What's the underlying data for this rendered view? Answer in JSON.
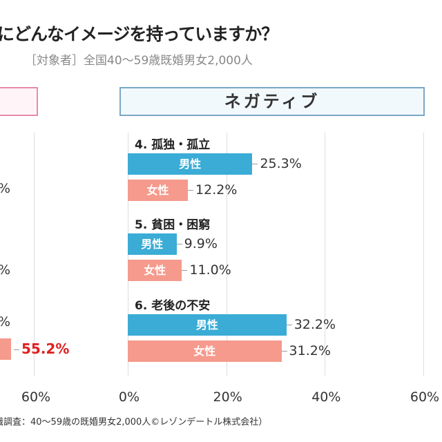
{
  "title": "にどんなイメージを持っていますか？",
  "subtitle": "［対象者］全国40〜59歳既婚男女2,000人",
  "footer": "識調査：40〜59歳の既婚男女2,000人©レゾンデートル株式会社）",
  "colors": {
    "male": "#3aacd6",
    "female": "#f59a8c",
    "highlight": "#e02020"
  },
  "left_panel": {
    "fragments": [
      "%",
      "%",
      "%"
    ],
    "highlight_value": "55.2%",
    "tick": "60%"
  },
  "chart_data": {
    "type": "bar",
    "orientation": "horizontal",
    "title": "ネガティブ",
    "categories": [
      "4. 孤独・孤立",
      "5. 貧困・困窮",
      "6. 老後の不安"
    ],
    "series": [
      {
        "name": "男性",
        "values": [
          25.3,
          9.9,
          32.2
        ]
      },
      {
        "name": "女性",
        "values": [
          12.2,
          11.0,
          31.2
        ]
      }
    ],
    "labels": {
      "male": [
        "25.3%",
        "9.9%",
        "32.2%"
      ],
      "female": [
        "12.2%",
        "11.0%",
        "31.2%"
      ]
    },
    "xlim": [
      0,
      60
    ],
    "ticks": [
      "0%",
      "20%",
      "40%",
      "60%"
    ],
    "grid": true
  }
}
